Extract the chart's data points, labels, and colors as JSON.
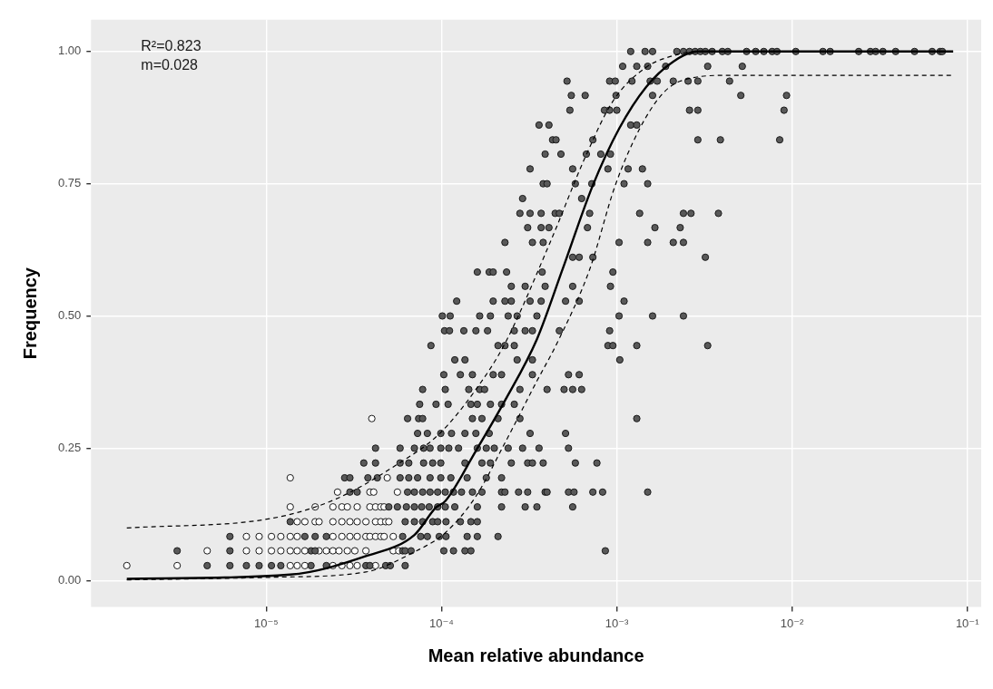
{
  "chart_data": {
    "type": "scatter",
    "xlabel": "Mean relative abundance",
    "ylabel": "Frequency",
    "log": "x",
    "grid": true,
    "legend": false,
    "marker": "circle",
    "xlim": [
      1e-06,
      0.12
    ],
    "ylim": [
      -0.05,
      1.06
    ],
    "xticks": [
      {
        "value": 1e-05,
        "label": "10⁻⁵"
      },
      {
        "value": 0.0001,
        "label": "10⁻⁴"
      },
      {
        "value": 0.001,
        "label": "10⁻³"
      },
      {
        "value": 0.01,
        "label": "10⁻²"
      },
      {
        "value": 0.1,
        "label": "10⁻¹"
      }
    ],
    "yticks": [
      {
        "value": 0,
        "label": "0.00"
      },
      {
        "value": 0.25,
        "label": "0.25"
      },
      {
        "value": 0.5,
        "label": "0.50"
      },
      {
        "value": 0.75,
        "label": "0.75"
      },
      {
        "value": 1,
        "label": "1.00"
      }
    ],
    "annotations": [
      "R²=0.823",
      "m=0.028"
    ],
    "series": [
      {
        "type": "scatter",
        "color": "#595959",
        "x": [
          4.6e-06,
          6.2e-06,
          7.7e-06,
          9.1e-06,
          1.07e-05,
          1.21e-05,
          1.8e-05,
          2.2e-05,
          3.7e-05,
          3.9e-05,
          4.8e-05,
          5.1e-05,
          6.2e-05,
          3.1e-06,
          6.2e-06,
          1.8e-05,
          1.9e-05,
          6e-05,
          6.2e-05,
          6.7e-05,
          0.000103,
          0.000117,
          0.000136,
          0.000147,
          0.00086,
          6.2e-06,
          1.66e-05,
          1.9e-05,
          2.2e-05,
          6e-05,
          7.6e-05,
          8.3e-05,
          9.7e-05,
          0.000106,
          0.00014,
          0.00016,
          0.00021,
          1.37e-05,
          6.2e-05,
          7e-05,
          7.8e-05,
          8.9e-05,
          9.5e-05,
          0.000106,
          0.000128,
          0.000147,
          0.00016,
          5e-05,
          5.6e-05,
          6.3e-05,
          7e-05,
          7.7e-05,
          8.5e-05,
          9.5e-05,
          0.000105,
          0.000119,
          0.00016,
          0.00022,
          0.0003,
          0.00035,
          0.00056,
          3e-05,
          3.3e-05,
          6.4e-05,
          7e-05,
          7.8e-05,
          8.6e-05,
          9.5e-05,
          0.000105,
          0.000117,
          0.00013,
          0.00015,
          0.00017,
          0.00022,
          0.00023,
          0.000275,
          0.00031,
          0.00039,
          0.0004,
          0.00053,
          0.00057,
          0.00073,
          0.00083,
          0.0015,
          2.8e-05,
          3e-05,
          3.8e-05,
          4.3e-05,
          5.8e-05,
          6.5e-05,
          7.3e-05,
          8.6e-05,
          9.9e-05,
          0.000113,
          0.00014,
          0.00018,
          0.00022,
          3.6e-05,
          4.2e-05,
          5.8e-05,
          6.5e-05,
          7.9e-05,
          8.9e-05,
          9.9e-05,
          0.000136,
          0.00017,
          0.00019,
          0.00025,
          0.00031,
          0.00033,
          0.00038,
          0.00058,
          0.00077,
          4.2e-05,
          5.8e-05,
          7e-05,
          7.9e-05,
          8.6e-05,
          9.9e-05,
          0.00011,
          0.000125,
          0.00016,
          0.00018,
          0.0002,
          0.00024,
          0.00029,
          0.00036,
          0.00053,
          7.3e-05,
          8.3e-05,
          9.9e-05,
          0.000114,
          0.000136,
          0.000157,
          0.000187,
          0.00032,
          0.00051,
          6.4e-05,
          7.4e-05,
          7.8e-05,
          0.00015,
          0.00017,
          0.00021,
          0.00028,
          0.0013,
          7.5e-05,
          9.3e-05,
          0.000109,
          0.000147,
          0.00016,
          0.00019,
          0.00022,
          0.00026,
          7.8e-05,
          0.000105,
          0.000143,
          0.000165,
          0.000176,
          0.00028,
          0.0004,
          0.0005,
          0.00056,
          0.00063,
          0.000103,
          0.000128,
          0.00015,
          0.000197,
          0.00022,
          0.00033,
          0.00053,
          0.00061,
          0.000119,
          0.000136,
          0.00027,
          0.00033,
          0.00104,
          8.7e-05,
          0.00021,
          0.00023,
          0.00026,
          0.00089,
          0.00095,
          0.0013,
          0.0033,
          0.000104,
          0.000111,
          0.000134,
          0.000157,
          0.000183,
          0.00026,
          0.0003,
          0.00033,
          0.00047,
          0.00091,
          0.000101,
          0.000112,
          0.000165,
          0.00019,
          0.00024,
          0.00027,
          0.00035,
          0.00103,
          0.0016,
          0.0024,
          0.000122,
          0.000197,
          0.00023,
          0.00025,
          0.00032,
          0.00037,
          0.00051,
          0.00061,
          0.0011,
          0.00025,
          0.0003,
          0.00039,
          0.00056,
          0.00092,
          0.00016,
          0.000187,
          0.000197,
          0.000235,
          0.000375,
          0.00095,
          0.00056,
          0.00061,
          0.00073,
          0.0032,
          0.00023,
          0.00033,
          0.00038,
          0.00103,
          0.0015,
          0.0021,
          0.0024,
          0.00031,
          0.00037,
          0.00041,
          0.00068,
          0.00165,
          0.0023,
          0.00028,
          0.00032,
          0.00037,
          0.000445,
          0.00047,
          0.0007,
          0.00135,
          0.0024,
          0.00265,
          0.0038,
          0.00029,
          0.00063,
          0.00038,
          0.0004,
          0.00058,
          0.00072,
          0.0011,
          0.0015,
          0.00032,
          0.00056,
          0.00089,
          0.00116,
          0.0014,
          0.00039,
          0.00048,
          0.00067,
          0.00081,
          0.00092,
          0.00043,
          0.00045,
          0.00073,
          0.0029,
          0.0039,
          0.0085,
          0.00036,
          0.00041,
          0.0012,
          0.0013,
          0.00054,
          0.00085,
          0.00091,
          0.001,
          0.0026,
          0.0029,
          0.009,
          0.00055,
          0.00066,
          0.00099,
          0.0016,
          0.0051,
          0.0093,
          0.00052,
          0.00091,
          0.00098,
          0.00122,
          0.00155,
          0.0017,
          0.0021,
          0.00255,
          0.0029,
          0.0044,
          0.00108,
          0.0013,
          0.0015,
          0.0019,
          0.0033,
          0.0052,
          0.0012,
          0.00145,
          0.0016,
          0.0022,
          0.0024,
          0.0026,
          0.0028,
          0.003,
          0.0032,
          0.0035,
          0.004,
          0.0043,
          0.0055,
          0.0062,
          0.0069,
          0.0077,
          0.0082,
          0.0105,
          0.015,
          0.0165,
          0.024,
          0.028,
          0.03,
          0.033,
          0.039,
          0.05,
          0.063,
          0.07,
          0.072
        ],
        "values": [
          0.028,
          0.028,
          0.028,
          0.028,
          0.028,
          0.028,
          0.028,
          0.028,
          0.028,
          0.028,
          0.028,
          0.028,
          0.028,
          0.056,
          0.056,
          0.056,
          0.056,
          0.056,
          0.056,
          0.056,
          0.056,
          0.056,
          0.056,
          0.056,
          0.056,
          0.083,
          0.083,
          0.083,
          0.083,
          0.083,
          0.083,
          0.083,
          0.083,
          0.083,
          0.083,
          0.083,
          0.083,
          0.111,
          0.111,
          0.111,
          0.111,
          0.111,
          0.111,
          0.111,
          0.111,
          0.111,
          0.111,
          0.139,
          0.139,
          0.139,
          0.139,
          0.139,
          0.139,
          0.139,
          0.139,
          0.139,
          0.139,
          0.139,
          0.139,
          0.139,
          0.139,
          0.167,
          0.167,
          0.167,
          0.167,
          0.167,
          0.167,
          0.167,
          0.167,
          0.167,
          0.167,
          0.167,
          0.167,
          0.167,
          0.167,
          0.167,
          0.167,
          0.167,
          0.167,
          0.167,
          0.167,
          0.167,
          0.167,
          0.167,
          0.194,
          0.194,
          0.194,
          0.194,
          0.194,
          0.194,
          0.194,
          0.194,
          0.194,
          0.194,
          0.194,
          0.194,
          0.194,
          0.222,
          0.222,
          0.222,
          0.222,
          0.222,
          0.222,
          0.222,
          0.222,
          0.222,
          0.222,
          0.222,
          0.222,
          0.222,
          0.222,
          0.222,
          0.222,
          0.25,
          0.25,
          0.25,
          0.25,
          0.25,
          0.25,
          0.25,
          0.25,
          0.25,
          0.25,
          0.25,
          0.25,
          0.25,
          0.25,
          0.25,
          0.278,
          0.278,
          0.278,
          0.278,
          0.278,
          0.278,
          0.278,
          0.278,
          0.278,
          0.306,
          0.306,
          0.306,
          0.306,
          0.306,
          0.306,
          0.306,
          0.306,
          0.333,
          0.333,
          0.333,
          0.333,
          0.333,
          0.333,
          0.333,
          0.333,
          0.361,
          0.361,
          0.361,
          0.361,
          0.361,
          0.361,
          0.361,
          0.361,
          0.361,
          0.361,
          0.389,
          0.389,
          0.389,
          0.389,
          0.389,
          0.389,
          0.389,
          0.389,
          0.417,
          0.417,
          0.417,
          0.417,
          0.417,
          0.444,
          0.444,
          0.444,
          0.444,
          0.444,
          0.444,
          0.444,
          0.444,
          0.472,
          0.472,
          0.472,
          0.472,
          0.472,
          0.472,
          0.472,
          0.472,
          0.472,
          0.472,
          0.5,
          0.5,
          0.5,
          0.5,
          0.5,
          0.5,
          0.5,
          0.5,
          0.5,
          0.5,
          0.528,
          0.528,
          0.528,
          0.528,
          0.528,
          0.528,
          0.528,
          0.528,
          0.528,
          0.556,
          0.556,
          0.556,
          0.556,
          0.556,
          0.583,
          0.583,
          0.583,
          0.583,
          0.583,
          0.583,
          0.611,
          0.611,
          0.611,
          0.611,
          0.639,
          0.639,
          0.639,
          0.639,
          0.639,
          0.639,
          0.639,
          0.667,
          0.667,
          0.667,
          0.667,
          0.667,
          0.667,
          0.694,
          0.694,
          0.694,
          0.694,
          0.694,
          0.694,
          0.694,
          0.694,
          0.694,
          0.694,
          0.722,
          0.722,
          0.75,
          0.75,
          0.75,
          0.75,
          0.75,
          0.75,
          0.778,
          0.778,
          0.778,
          0.778,
          0.778,
          0.806,
          0.806,
          0.806,
          0.806,
          0.806,
          0.833,
          0.833,
          0.833,
          0.833,
          0.833,
          0.833,
          0.861,
          0.861,
          0.861,
          0.861,
          0.889,
          0.889,
          0.889,
          0.889,
          0.889,
          0.889,
          0.889,
          0.917,
          0.917,
          0.917,
          0.917,
          0.917,
          0.917,
          0.944,
          0.944,
          0.944,
          0.944,
          0.944,
          0.944,
          0.944,
          0.944,
          0.944,
          0.944,
          0.972,
          0.972,
          0.972,
          0.972,
          0.972,
          0.972,
          1,
          1,
          1,
          1,
          1,
          1,
          1,
          1,
          1,
          1,
          1,
          1,
          1,
          1,
          1,
          1,
          1,
          1,
          1,
          1,
          1,
          1,
          1,
          1,
          1,
          1,
          1,
          1,
          1
        ]
      },
      {
        "type": "scatter",
        "color": "#ffffff",
        "x": [
          1.6e-06,
          3.1e-06,
          1.37e-05,
          1.5e-05,
          1.66e-05,
          2.4e-05,
          2.7e-05,
          3e-05,
          3.3e-05,
          4.2e-05,
          4.6e-06,
          7.7e-06,
          9.1e-06,
          1.07e-05,
          1.21e-05,
          1.37e-05,
          1.5e-05,
          1.66e-05,
          2e-05,
          2.2e-05,
          2.4e-05,
          2.6e-05,
          2.9e-05,
          3.2e-05,
          3.7e-05,
          5.3e-05,
          5.7e-05,
          7.7e-06,
          9.1e-06,
          1.07e-05,
          1.21e-05,
          1.37e-05,
          1.5e-05,
          2.4e-05,
          2.7e-05,
          3e-05,
          3.3e-05,
          3.7e-05,
          3.9e-05,
          4.2e-05,
          4.5e-05,
          4.7e-05,
          5.3e-05,
          1.5e-05,
          1.66e-05,
          1.9e-05,
          2e-05,
          2.4e-05,
          2.7e-05,
          3e-05,
          3.3e-05,
          3.7e-05,
          4.2e-05,
          4.5e-05,
          4.8e-05,
          5e-05,
          1.37e-05,
          1.9e-05,
          2.4e-05,
          2.7e-05,
          2.9e-05,
          3.3e-05,
          3.9e-05,
          4.2e-05,
          4.5e-05,
          4.7e-05,
          2.55e-05,
          3.9e-05,
          4.1e-05,
          5.6e-05,
          1.37e-05,
          4.9e-05,
          4e-05
        ],
        "values": [
          0.028,
          0.028,
          0.028,
          0.028,
          0.028,
          0.028,
          0.028,
          0.028,
          0.028,
          0.028,
          0.056,
          0.056,
          0.056,
          0.056,
          0.056,
          0.056,
          0.056,
          0.056,
          0.056,
          0.056,
          0.056,
          0.056,
          0.056,
          0.056,
          0.056,
          0.056,
          0.056,
          0.083,
          0.083,
          0.083,
          0.083,
          0.083,
          0.083,
          0.083,
          0.083,
          0.083,
          0.083,
          0.083,
          0.083,
          0.083,
          0.083,
          0.083,
          0.083,
          0.111,
          0.111,
          0.111,
          0.111,
          0.111,
          0.111,
          0.111,
          0.111,
          0.111,
          0.111,
          0.111,
          0.111,
          0.111,
          0.139,
          0.139,
          0.139,
          0.139,
          0.139,
          0.139,
          0.139,
          0.139,
          0.139,
          0.139,
          0.167,
          0.167,
          0.167,
          0.167,
          0.194,
          0.194,
          0.306
        ]
      },
      {
        "type": "line",
        "color": "#000000",
        "line_style": "solid",
        "marker": "none",
        "x": [
          1.6e-06,
          1.37e-05,
          3.7e-05,
          7e-05,
          9.3e-05,
          0.000105,
          0.000157,
          0.00023,
          0.00035,
          0.00049,
          0.00073,
          0.00103,
          0.00147,
          0.0021,
          0.0029,
          0.083
        ],
        "values": [
          0.003,
          0.011,
          0.046,
          0.086,
          0.138,
          0.15,
          0.245,
          0.34,
          0.456,
          0.588,
          0.747,
          0.854,
          0.933,
          0.981,
          1,
          1
        ]
      },
      {
        "type": "line",
        "color": "#000000",
        "line_style": "dashed",
        "marker": "none",
        "x": [
          1.6e-06,
          1.1e-05,
          2.5e-05,
          5.5e-05,
          9.7e-05,
          0.000157,
          0.00023,
          0.00042,
          0.00066,
          0.00095,
          0.00147,
          0.0022,
          0.0028,
          0.083
        ],
        "values": [
          0.099,
          0.118,
          0.154,
          0.218,
          0.277,
          0.361,
          0.448,
          0.642,
          0.8,
          0.906,
          0.97,
          0.994,
          1,
          1
        ]
      },
      {
        "type": "line",
        "color": "#000000",
        "line_style": "dashed",
        "marker": "none",
        "x": [
          1.6e-06,
          1.1e-05,
          3.7e-05,
          7e-05,
          0.000105,
          0.000157,
          0.00023,
          0.00035,
          0.00046,
          0.0007,
          0.00098,
          0.00135,
          0.0018,
          0.0023,
          0.0044,
          0.083
        ],
        "values": [
          0.001,
          0.006,
          0.016,
          0.054,
          0.09,
          0.159,
          0.26,
          0.377,
          0.451,
          0.588,
          0.747,
          0.854,
          0.918,
          0.944,
          0.955,
          0.955
        ]
      }
    ]
  }
}
